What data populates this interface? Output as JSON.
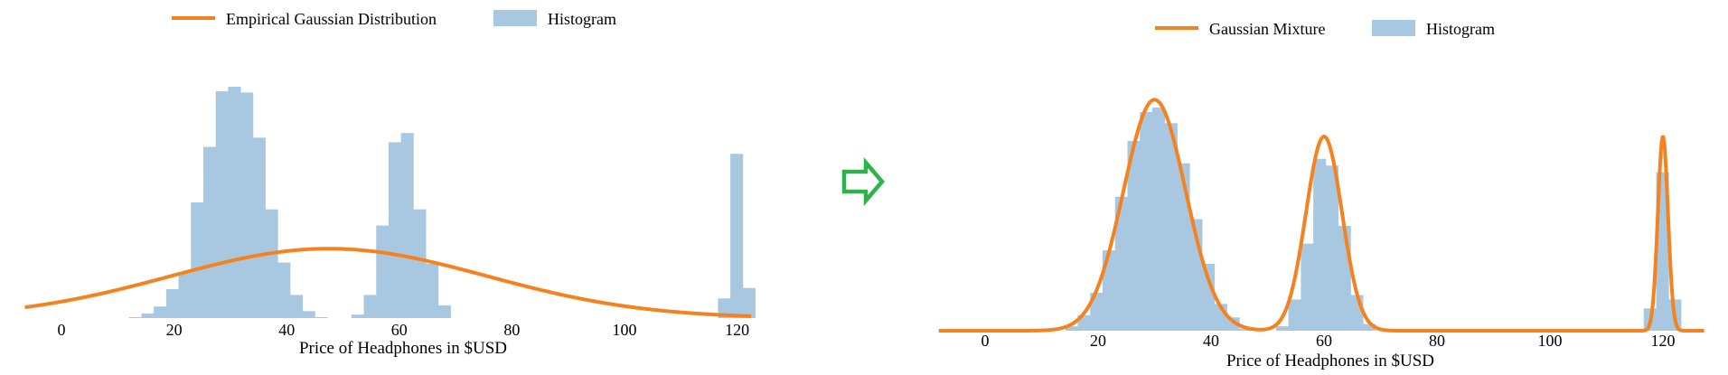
{
  "colors": {
    "histogram": "#a8c8e1",
    "curve": "#f5821f",
    "arrow": "#2db34a",
    "text": "#000000"
  },
  "arrow": {
    "icon": "right-arrow-icon"
  },
  "chart_data": [
    {
      "type": "histogram",
      "title": "",
      "xlabel": "Price of Headphones in $USD",
      "ylabel": "",
      "xlim": [
        -10,
        130
      ],
      "ylim": [
        0,
        1.0
      ],
      "xticks": [
        "0",
        "20",
        "40",
        "60",
        "80",
        "100",
        "120"
      ],
      "grid": false,
      "legend": {
        "position": "top",
        "entries": [
          {
            "label": "Empirical Gaussian Distribution",
            "kind": "line"
          },
          {
            "label": "Histogram",
            "kind": "patch"
          }
        ]
      },
      "histogram": {
        "bin_width": 2.2,
        "bins": [
          {
            "x": 12,
            "y": 0.004
          },
          {
            "x": 14.2,
            "y": 0.02
          },
          {
            "x": 16.4,
            "y": 0.05
          },
          {
            "x": 18.6,
            "y": 0.125
          },
          {
            "x": 20.8,
            "y": 0.2
          },
          {
            "x": 23,
            "y": 0.5
          },
          {
            "x": 25.2,
            "y": 0.74
          },
          {
            "x": 27.4,
            "y": 0.98
          },
          {
            "x": 29.6,
            "y": 1.0
          },
          {
            "x": 31.8,
            "y": 0.975
          },
          {
            "x": 34,
            "y": 0.78
          },
          {
            "x": 36.2,
            "y": 0.47
          },
          {
            "x": 38.4,
            "y": 0.24
          },
          {
            "x": 40.6,
            "y": 0.1
          },
          {
            "x": 42.8,
            "y": 0.03
          },
          {
            "x": 45,
            "y": 0.004
          },
          {
            "x": 51.5,
            "y": 0.015
          },
          {
            "x": 53.7,
            "y": 0.1
          },
          {
            "x": 55.9,
            "y": 0.4
          },
          {
            "x": 58.1,
            "y": 0.76
          },
          {
            "x": 60.3,
            "y": 0.8
          },
          {
            "x": 62.5,
            "y": 0.47
          },
          {
            "x": 64.7,
            "y": 0.235
          },
          {
            "x": 66.9,
            "y": 0.055
          },
          {
            "x": 116.6,
            "y": 0.085
          },
          {
            "x": 118.8,
            "y": 0.71
          },
          {
            "x": 121,
            "y": 0.13
          }
        ]
      },
      "curve": {
        "label": "Empirical Gaussian Distribution",
        "components": [
          {
            "weight": 1.0,
            "mean": 47.5,
            "std": 28,
            "peak": 0.3
          }
        ]
      }
    },
    {
      "type": "histogram",
      "title": "",
      "xlabel": "Price of Headphones in $USD",
      "ylabel": "",
      "xlim": [
        -10,
        130
      ],
      "ylim": [
        0,
        1.0
      ],
      "xticks": [
        "0",
        "20",
        "40",
        "60",
        "80",
        "100",
        "120"
      ],
      "grid": false,
      "legend": {
        "position": "top",
        "entries": [
          {
            "label": "Gaussian Mixture",
            "kind": "line"
          },
          {
            "label": "Histogram",
            "kind": "patch"
          }
        ]
      },
      "histogram": {
        "bin_width": 2.2,
        "bins": [
          {
            "x": 14.2,
            "y": 0.02
          },
          {
            "x": 16.4,
            "y": 0.07
          },
          {
            "x": 18.6,
            "y": 0.17
          },
          {
            "x": 20.8,
            "y": 0.36
          },
          {
            "x": 23,
            "y": 0.6
          },
          {
            "x": 25.2,
            "y": 0.85
          },
          {
            "x": 27.4,
            "y": 0.98
          },
          {
            "x": 29.6,
            "y": 1.0
          },
          {
            "x": 31.8,
            "y": 0.93
          },
          {
            "x": 34,
            "y": 0.75
          },
          {
            "x": 36.2,
            "y": 0.5
          },
          {
            "x": 38.4,
            "y": 0.3
          },
          {
            "x": 40.6,
            "y": 0.12
          },
          {
            "x": 42.8,
            "y": 0.06
          },
          {
            "x": 45,
            "y": 0.01
          },
          {
            "x": 51.5,
            "y": 0.02
          },
          {
            "x": 53.7,
            "y": 0.14
          },
          {
            "x": 55.9,
            "y": 0.39
          },
          {
            "x": 58.1,
            "y": 0.77
          },
          {
            "x": 60.3,
            "y": 0.74
          },
          {
            "x": 62.5,
            "y": 0.47
          },
          {
            "x": 64.7,
            "y": 0.16
          },
          {
            "x": 66.9,
            "y": 0.03
          },
          {
            "x": 116.6,
            "y": 0.1
          },
          {
            "x": 118.8,
            "y": 0.71
          },
          {
            "x": 121,
            "y": 0.14
          }
        ]
      },
      "curve": {
        "label": "Gaussian Mixture",
        "components": [
          {
            "mean": 30,
            "std": 5.5,
            "peak": 1.035
          },
          {
            "mean": 60,
            "std": 3.2,
            "peak": 0.87
          },
          {
            "mean": 120,
            "std": 0.9,
            "peak": 0.87
          }
        ]
      }
    }
  ]
}
